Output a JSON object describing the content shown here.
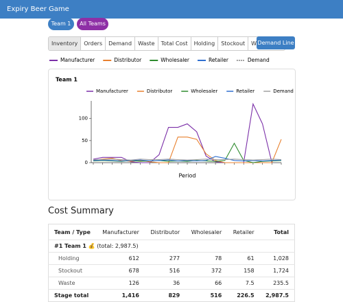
{
  "header": {
    "title": "Expiry Beer Game"
  },
  "team_buttons": [
    "Team 1",
    "All Teams"
  ],
  "tabs": [
    "Inventory",
    "Orders",
    "Demand",
    "Waste",
    "Total Cost",
    "Holding",
    "Stockout",
    "Waste Cost"
  ],
  "demand_button": "Demand Line",
  "top_legend": [
    "Manufacturer",
    "Distributor",
    "Wholesaler",
    "Retailer",
    "Demand"
  ],
  "chart_data": {
    "type": "line",
    "title": "Team 1",
    "x_label": "Period",
    "ylim": [
      0,
      140
    ],
    "yticks": [
      0,
      50,
      100
    ],
    "series": [
      {
        "name": "Manufacturer",
        "color": "#7b2fa8",
        "values": [
          8,
          12,
          12,
          12,
          2,
          0,
          0,
          18,
          80,
          80,
          88,
          70,
          15,
          2,
          0,
          0,
          0,
          133,
          88,
          0,
          null
        ]
      },
      {
        "name": "Distributor",
        "color": "#e8802e",
        "values": [
          5,
          8,
          10,
          5,
          3,
          5,
          2,
          0,
          0,
          58,
          58,
          53,
          20,
          5,
          0,
          0,
          0,
          0,
          0,
          0,
          53
        ]
      },
      {
        "name": "Wholesaler",
        "color": "#2e8b2e",
        "values": [
          4,
          5,
          4,
          3,
          5,
          3,
          4,
          5,
          3,
          4,
          3,
          5,
          4,
          3,
          5,
          44,
          5,
          0,
          3,
          4,
          5
        ]
      },
      {
        "name": "Retailer",
        "color": "#2f6fd0",
        "values": [
          5,
          6,
          5,
          4,
          5,
          6,
          4,
          5,
          6,
          4,
          5,
          4,
          5,
          14,
          10,
          5,
          4,
          5,
          4,
          5,
          6
        ]
      },
      {
        "name": "Demand",
        "color": "#a0a0a0",
        "values": [
          7,
          7,
          8,
          7,
          6,
          8,
          7,
          7,
          8,
          7,
          6,
          7,
          8,
          7,
          7,
          8,
          7,
          6,
          7,
          8,
          7
        ]
      }
    ]
  },
  "cost_summary": {
    "title": "Cost Summary",
    "columns": [
      "Team / Type",
      "Manufacturer",
      "Distributor",
      "Wholesaler",
      "Retailer",
      "Total"
    ],
    "group": {
      "team": "#1 Team 1 💰",
      "total": "(total: 2,987.5)"
    },
    "rows": [
      [
        "Holding",
        "612",
        "277",
        "78",
        "61",
        "1,028"
      ],
      [
        "Stockout",
        "678",
        "516",
        "372",
        "158",
        "1,724"
      ],
      [
        "Waste",
        "126",
        "36",
        "66",
        "7.5",
        "235.5"
      ],
      [
        "Stage total",
        "1,416",
        "829",
        "516",
        "226.5",
        "2,987.5"
      ]
    ]
  }
}
